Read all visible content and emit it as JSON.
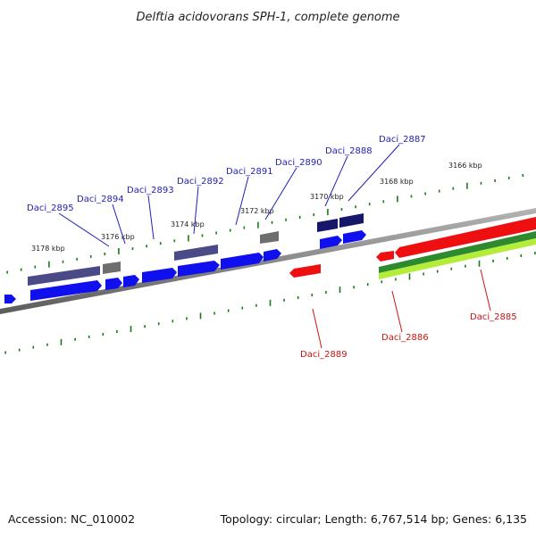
{
  "title": "Delftia acidovorans SPH-1, complete genome",
  "footer": {
    "accession": "Accession: NC_010002",
    "summary": "Topology: circular; Length: 6,767,514 bp; Genes: 6,135"
  },
  "colors": {
    "backbone": "#8a8a8a",
    "tick": "#1a7a1a",
    "forward_label": "#1f1fb4",
    "reverse_label": "#c81414",
    "blue": "#1010ee",
    "navy": "#16166a",
    "slate": "#4a4a88",
    "gray": "#6e6e6e",
    "red": "#ee1010",
    "green": "#2e8a2e",
    "lime": "#b4ec3c"
  },
  "kbp_labels": [
    "3178 kbp",
    "3176 kbp",
    "3174 kbp",
    "3172 kbp",
    "3170 kbp",
    "3168 kbp",
    "3166 kbp"
  ],
  "genes_forward": [
    "Daci_2895",
    "Daci_2894",
    "Daci_2893",
    "Daci_2892",
    "Daci_2891",
    "Daci_2890",
    "Daci_2888",
    "Daci_2887"
  ],
  "genes_reverse": [
    "Daci_2889",
    "Daci_2886",
    "Daci_2885"
  ]
}
